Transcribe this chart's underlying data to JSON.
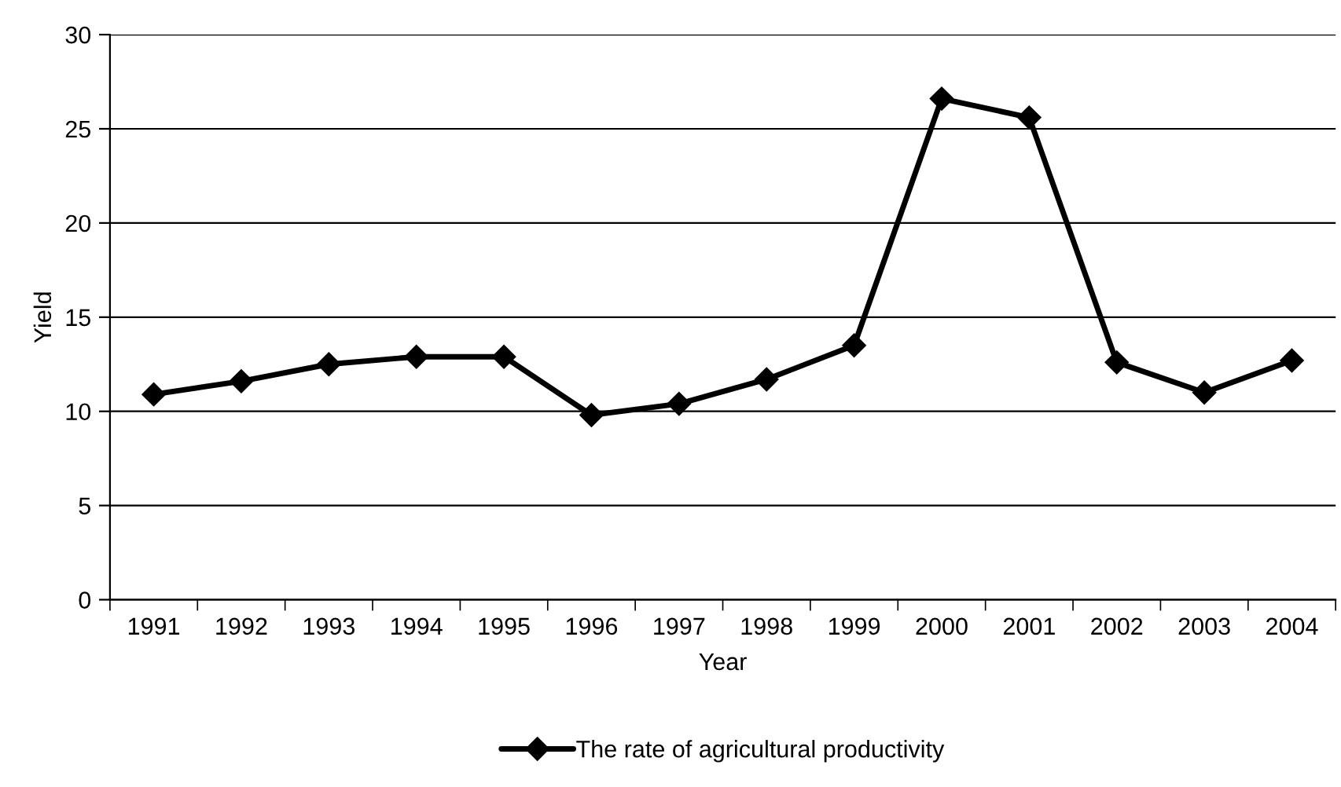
{
  "chart_data": {
    "type": "line",
    "xlabel": "Year",
    "ylabel": "Yield",
    "categories": [
      "1991",
      "1992",
      "1993",
      "1994",
      "1995",
      "1996",
      "1997",
      "1998",
      "1999",
      "2000",
      "2001",
      "2002",
      "2003",
      "2004"
    ],
    "series": [
      {
        "name": "The rate of agricultural productivity",
        "color": "#000000",
        "values": [
          10.9,
          11.6,
          12.5,
          12.9,
          12.9,
          9.8,
          10.4,
          11.7,
          13.5,
          26.6,
          25.6,
          12.6,
          11.0,
          12.7
        ]
      }
    ],
    "ylim": [
      0,
      30
    ],
    "yticks": [
      0,
      5,
      10,
      15,
      20,
      25,
      30
    ],
    "grid": "y",
    "legend": "bottom",
    "marker": "diamond",
    "line_style": "solid"
  }
}
